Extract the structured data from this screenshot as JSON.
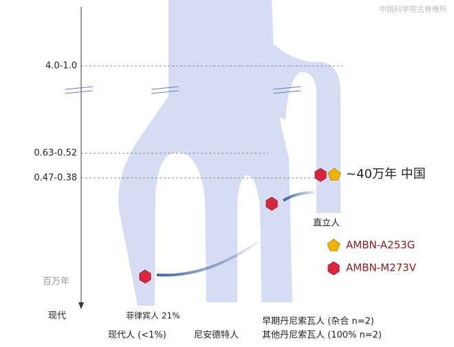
{
  "watermark": "中国科学院古脊椎所",
  "axis": {
    "unit": "百万年",
    "present": "现代",
    "ticks": [
      "4.0-1.0",
      "0.63-0.52",
      "0.47-0.38"
    ]
  },
  "annotation": "~40万年 中国",
  "nodes": [
    {
      "label": "直立人"
    },
    {
      "label": "菲律宾人 21%"
    },
    {
      "label": "现代人 (<1%)"
    },
    {
      "label": "尼安德特人"
    },
    {
      "label": "早期丹尼索瓦人 (杂合  n=2)"
    },
    {
      "label": "其他丹尼索瓦人 (100% n=2)"
    }
  ],
  "legend": [
    {
      "label": "AMBN-A253G"
    },
    {
      "label": "AMBN-M273V"
    }
  ]
}
